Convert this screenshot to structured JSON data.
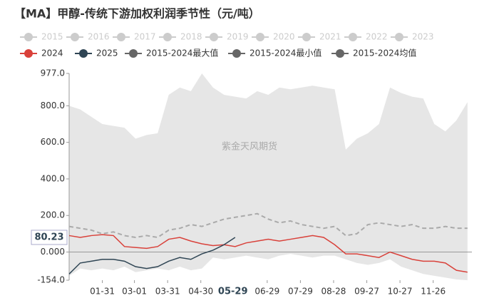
{
  "chart_data": {
    "type": "line",
    "title": "【MA】甲醇-传统下游加权利润季节性（元/吨）",
    "watermark": "紫金天风期货",
    "legend_disabled": [
      "2015",
      "2016",
      "2017",
      "2018",
      "2019",
      "2020",
      "2021",
      "2022",
      "2023"
    ],
    "disabled_color": "#cccccc",
    "x": [
      1,
      11,
      21,
      31,
      41,
      51,
      61,
      71,
      81,
      91,
      101,
      111,
      121,
      131,
      141,
      151,
      161,
      171,
      181,
      191,
      201,
      211,
      221,
      231,
      241,
      251,
      261,
      271,
      281,
      291,
      301,
      311,
      321,
      331,
      341,
      351,
      361
    ],
    "xlim": [
      1,
      365
    ],
    "xticks": [
      {
        "value": 31,
        "label": "01-31"
      },
      {
        "value": 60,
        "label": "03-01"
      },
      {
        "value": 90,
        "label": "03-31"
      },
      {
        "value": 120,
        "label": "04-30"
      },
      {
        "value": 180,
        "label": "06-29"
      },
      {
        "value": 210,
        "label": "07-29"
      },
      {
        "value": 240,
        "label": "08-28"
      },
      {
        "value": 270,
        "label": "09-27"
      },
      {
        "value": 300,
        "label": "10-27"
      },
      {
        "value": 330,
        "label": "11-26"
      }
    ],
    "ylim": [
      -154,
      977
    ],
    "yticks": [
      {
        "value": -154,
        "label": "-154.0"
      },
      {
        "value": 0,
        "label": "0.000"
      },
      {
        "value": 200,
        "label": "200.0"
      },
      {
        "value": 400,
        "label": "400.0"
      },
      {
        "value": 600,
        "label": "600.0"
      },
      {
        "value": 800,
        "label": "800.0"
      },
      {
        "value": 977,
        "label": "977.0"
      }
    ],
    "band_fill": "#e6e6e6",
    "series": [
      {
        "name": "2024",
        "color": "#d9413a",
        "values": [
          90,
          80,
          90,
          95,
          90,
          30,
          25,
          20,
          30,
          70,
          80,
          60,
          45,
          35,
          40,
          30,
          50,
          60,
          70,
          60,
          70,
          80,
          90,
          80,
          40,
          -10,
          -10,
          -20,
          -30,
          0,
          -20,
          -40,
          -50,
          -50,
          -60,
          -100,
          -110
        ]
      },
      {
        "name": "2025",
        "color": "#2f4554",
        "values": [
          -120,
          -60,
          -50,
          -40,
          -40,
          -50,
          -80,
          -90,
          -80,
          -50,
          -30,
          -40,
          -10,
          10,
          40,
          80.23,
          null,
          null,
          null,
          null,
          null,
          null,
          null,
          null,
          null,
          null,
          null,
          null,
          null,
          null,
          null,
          null,
          null,
          null,
          null,
          null,
          null
        ]
      },
      {
        "name": "2015-2024最大值",
        "color": "#666666",
        "role": "band_top",
        "values": [
          800,
          780,
          740,
          700,
          690,
          680,
          620,
          640,
          650,
          860,
          900,
          880,
          977,
          900,
          860,
          850,
          840,
          880,
          860,
          900,
          890,
          900,
          910,
          900,
          890,
          560,
          620,
          650,
          700,
          900,
          870,
          850,
          840,
          700,
          660,
          720,
          820
        ]
      },
      {
        "name": "2015-2024最小值",
        "color": "#666666",
        "role": "band_bottom",
        "values": [
          -130,
          -90,
          -100,
          -90,
          -100,
          -80,
          -110,
          -100,
          -90,
          -100,
          -80,
          -100,
          -90,
          -30,
          -40,
          -30,
          -20,
          -30,
          -40,
          -20,
          -10,
          -20,
          -30,
          -20,
          -20,
          -40,
          -60,
          -70,
          -60,
          -40,
          -80,
          -100,
          -120,
          -130,
          -140,
          -150,
          -154
        ]
      },
      {
        "name": "2015-2024均值",
        "color": "#666666",
        "dash": true,
        "line_color": "#aaaaaa",
        "values": [
          140,
          130,
          120,
          100,
          110,
          90,
          80,
          90,
          80,
          120,
          130,
          150,
          140,
          160,
          180,
          190,
          200,
          210,
          180,
          160,
          170,
          150,
          140,
          130,
          140,
          90,
          100,
          150,
          160,
          150,
          140,
          150,
          130,
          130,
          140,
          130,
          130
        ]
      }
    ],
    "crosshair": {
      "x": 149,
      "x_label": "05-29",
      "y": 80.23
    }
  }
}
